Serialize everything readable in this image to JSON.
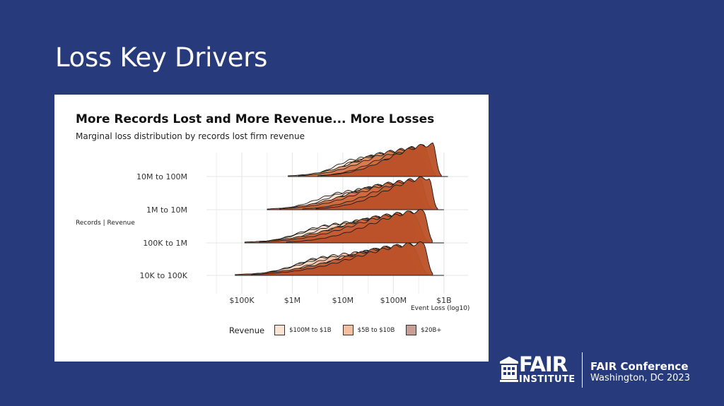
{
  "slide": {
    "title": "Loss Key Drivers"
  },
  "chart_data": {
    "type": "ridgeline",
    "title": "More Records Lost and More Revenue... More Losses",
    "subtitle": "Marginal loss distribution by records lost firm revenue",
    "ylabel": "Records | Revenue",
    "xlabel": "Event Loss (log10)",
    "x_scale": "log10",
    "x_ticks": [
      {
        "label": "$100K",
        "value": 100000
      },
      {
        "label": "$1M",
        "value": 1000000
      },
      {
        "label": "$10M",
        "value": 10000000
      },
      {
        "label": "$100M",
        "value": 100000000
      },
      {
        "label": "$1B",
        "value": 1000000000
      }
    ],
    "xlim": [
      20000,
      3000000000
    ],
    "groups": [
      {
        "label": "10K to 100K",
        "start": 100000,
        "end": 1000000000,
        "peak_start": 4000000,
        "peak_end": 400000000
      },
      {
        "label": "100K to 1M",
        "start": 150000,
        "end": 1000000000,
        "peak_start": 6000000,
        "peak_end": 400000000
      },
      {
        "label": "1M to 10M",
        "start": 400000,
        "end": 1000000000,
        "peak_start": 12000000,
        "peak_end": 500000000
      },
      {
        "label": "10M to 100M",
        "start": 1000000,
        "end": 1200000000,
        "peak_start": 20000000,
        "peak_end": 600000000
      }
    ],
    "legend": {
      "title": "Revenue",
      "position": "bottom",
      "entries": [
        {
          "label": "$100M to $1B",
          "color": "#fbe3d3"
        },
        {
          "label": "$5B to $10B",
          "color": "#f2bfa1"
        },
        {
          "label": "$20B+",
          "color": "#c99e96"
        }
      ]
    },
    "fill_colors": [
      "#fdf0e6",
      "#fbe3d3",
      "#f8d2b8",
      "#f2bfa1",
      "#eba983",
      "#e29267",
      "#d87a4f",
      "#cd6a3e",
      "#c45d33",
      "#bb5229"
    ]
  },
  "brand": {
    "logo_top": "FAIR",
    "logo_bottom": "INSTITUTE",
    "conference": "FAIR Conference",
    "location": "Washington, DC 2023"
  }
}
